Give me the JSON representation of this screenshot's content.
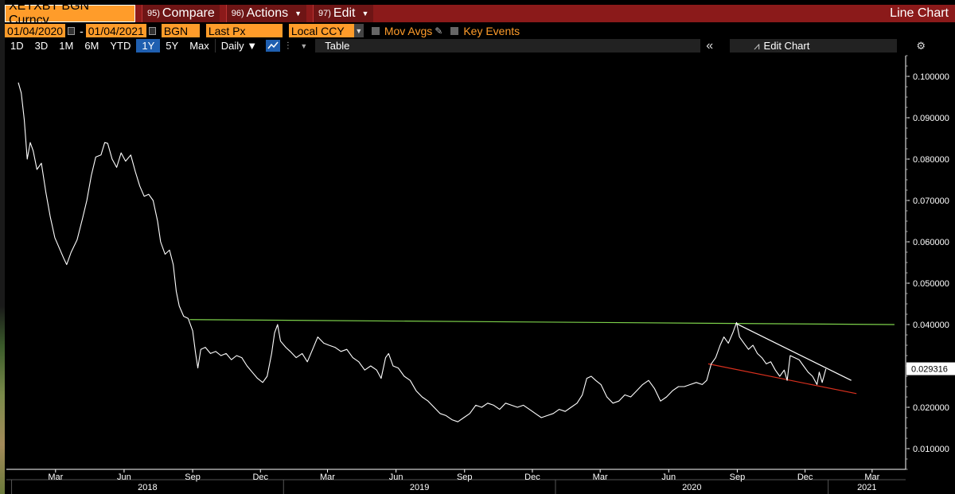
{
  "header": {
    "ticker": "XETXBT BGN Curncy",
    "compare_num": "95)",
    "compare_label": "Compare",
    "actions_num": "96)",
    "actions_label": "Actions",
    "edit_num": "97)",
    "edit_label": "Edit",
    "title": "Line Chart"
  },
  "controls": {
    "start_date": "01/04/2020",
    "end_date": "01/04/2021",
    "source": "BGN",
    "field": "Last Px",
    "currency": "Local CCY",
    "mov_avgs": "Mov Avgs",
    "key_events": "Key Events"
  },
  "toolbar": {
    "periods": [
      "1D",
      "3D",
      "1M",
      "6M",
      "YTD",
      "1Y",
      "5Y",
      "Max"
    ],
    "active_period": "1Y",
    "frequency": "Daily ▼",
    "table_label": "Table",
    "collapse_label": "«",
    "edit_chart_label": "Edit Chart",
    "settings_icon": "gear-icon"
  },
  "colors": {
    "header_red": "#8b1a1a",
    "orange": "#ff9c2a",
    "active_blue": "#1f5fb0",
    "resistance_green": "#7cd04a",
    "support_red": "#d9301e",
    "price_line": "#ffffff"
  },
  "chart_data": {
    "type": "line",
    "series": [
      {
        "values": [
          [
            "2018-01-10",
            0.0985
          ],
          [
            "2018-01-14",
            0.096
          ],
          [
            "2018-01-18",
            0.0895
          ],
          [
            "2018-01-22",
            0.08
          ],
          [
            "2018-01-26",
            0.084
          ],
          [
            "2018-01-30",
            0.082
          ],
          [
            "2018-02-04",
            0.0775
          ],
          [
            "2018-02-10",
            0.079
          ],
          [
            "2018-02-16",
            0.072
          ],
          [
            "2018-02-22",
            0.066
          ],
          [
            "2018-02-28",
            0.061
          ],
          [
            "2018-03-06",
            0.0585
          ],
          [
            "2018-03-12",
            0.056
          ],
          [
            "2018-03-16",
            0.0545
          ],
          [
            "2018-03-22",
            0.0575
          ],
          [
            "2018-03-30",
            0.0605
          ],
          [
            "2018-04-06",
            0.0655
          ],
          [
            "2018-04-12",
            0.07
          ],
          [
            "2018-04-18",
            0.076
          ],
          [
            "2018-04-24",
            0.0805
          ],
          [
            "2018-05-01",
            0.081
          ],
          [
            "2018-05-06",
            0.084
          ],
          [
            "2018-05-10",
            0.0838
          ],
          [
            "2018-05-16",
            0.08
          ],
          [
            "2018-05-22",
            0.078
          ],
          [
            "2018-05-28",
            0.0815
          ],
          [
            "2018-06-03",
            0.0795
          ],
          [
            "2018-06-10",
            0.081
          ],
          [
            "2018-06-16",
            0.077
          ],
          [
            "2018-06-22",
            0.0735
          ],
          [
            "2018-06-28",
            0.071
          ],
          [
            "2018-07-04",
            0.0715
          ],
          [
            "2018-07-10",
            0.07
          ],
          [
            "2018-07-16",
            0.065
          ],
          [
            "2018-07-20",
            0.06
          ],
          [
            "2018-07-26",
            0.057
          ],
          [
            "2018-08-01",
            0.058
          ],
          [
            "2018-08-06",
            0.0545
          ],
          [
            "2018-08-10",
            0.048
          ],
          [
            "2018-08-14",
            0.0445
          ],
          [
            "2018-08-20",
            0.042
          ],
          [
            "2018-08-26",
            0.0415
          ],
          [
            "2018-09-01",
            0.0385
          ],
          [
            "2018-09-05",
            0.033
          ],
          [
            "2018-09-08",
            0.0295
          ],
          [
            "2018-09-12",
            0.034
          ],
          [
            "2018-09-18",
            0.0345
          ],
          [
            "2018-09-25",
            0.033
          ],
          [
            "2018-10-02",
            0.0335
          ],
          [
            "2018-10-09",
            0.0325
          ],
          [
            "2018-10-16",
            0.033
          ],
          [
            "2018-10-23",
            0.0315
          ],
          [
            "2018-10-30",
            0.0325
          ],
          [
            "2018-11-06",
            0.032
          ],
          [
            "2018-11-13",
            0.03
          ],
          [
            "2018-11-20",
            0.0285
          ],
          [
            "2018-11-27",
            0.027
          ],
          [
            "2018-12-04",
            0.026
          ],
          [
            "2018-12-10",
            0.0275
          ],
          [
            "2018-12-16",
            0.033
          ],
          [
            "2018-12-20",
            0.038
          ],
          [
            "2018-12-24",
            0.04
          ],
          [
            "2018-12-28",
            0.036
          ],
          [
            "2019-01-04",
            0.0345
          ],
          [
            "2019-01-10",
            0.0335
          ],
          [
            "2019-01-18",
            0.032
          ],
          [
            "2019-01-26",
            0.033
          ],
          [
            "2019-02-02",
            0.031
          ],
          [
            "2019-02-09",
            0.034
          ],
          [
            "2019-02-16",
            0.037
          ],
          [
            "2019-02-24",
            0.0355
          ],
          [
            "2019-03-03",
            0.035
          ],
          [
            "2019-03-11",
            0.0345
          ],
          [
            "2019-03-19",
            0.0335
          ],
          [
            "2019-03-27",
            0.034
          ],
          [
            "2019-04-04",
            0.032
          ],
          [
            "2019-04-12",
            0.031
          ],
          [
            "2019-04-20",
            0.029
          ],
          [
            "2019-04-28",
            0.03
          ],
          [
            "2019-05-06",
            0.029
          ],
          [
            "2019-05-12",
            0.027
          ],
          [
            "2019-05-18",
            0.032
          ],
          [
            "2019-05-22",
            0.033
          ],
          [
            "2019-05-28",
            0.03
          ],
          [
            "2019-06-04",
            0.0295
          ],
          [
            "2019-06-12",
            0.0275
          ],
          [
            "2019-06-20",
            0.0265
          ],
          [
            "2019-06-28",
            0.024
          ],
          [
            "2019-07-06",
            0.0225
          ],
          [
            "2019-07-14",
            0.0215
          ],
          [
            "2019-07-22",
            0.02
          ],
          [
            "2019-07-30",
            0.0185
          ],
          [
            "2019-08-07",
            0.018
          ],
          [
            "2019-08-15",
            0.017
          ],
          [
            "2019-08-23",
            0.0165
          ],
          [
            "2019-08-31",
            0.0175
          ],
          [
            "2019-09-08",
            0.0185
          ],
          [
            "2019-09-16",
            0.0205
          ],
          [
            "2019-09-24",
            0.02
          ],
          [
            "2019-10-02",
            0.021
          ],
          [
            "2019-10-10",
            0.0205
          ],
          [
            "2019-10-18",
            0.0195
          ],
          [
            "2019-10-26",
            0.021
          ],
          [
            "2019-11-03",
            0.0205
          ],
          [
            "2019-11-11",
            0.02
          ],
          [
            "2019-11-19",
            0.0205
          ],
          [
            "2019-11-27",
            0.0195
          ],
          [
            "2019-12-05",
            0.0185
          ],
          [
            "2019-12-13",
            0.0175
          ],
          [
            "2019-12-21",
            0.018
          ],
          [
            "2019-12-29",
            0.0185
          ],
          [
            "2020-01-06",
            0.0195
          ],
          [
            "2020-01-14",
            0.019
          ],
          [
            "2020-01-22",
            0.02
          ],
          [
            "2020-01-30",
            0.021
          ],
          [
            "2020-02-06",
            0.023
          ],
          [
            "2020-02-12",
            0.027
          ],
          [
            "2020-02-18",
            0.0275
          ],
          [
            "2020-02-24",
            0.0265
          ],
          [
            "2020-03-02",
            0.0255
          ],
          [
            "2020-03-10",
            0.0225
          ],
          [
            "2020-03-18",
            0.021
          ],
          [
            "2020-03-26",
            0.0215
          ],
          [
            "2020-04-03",
            0.023
          ],
          [
            "2020-04-11",
            0.0225
          ],
          [
            "2020-04-19",
            0.024
          ],
          [
            "2020-04-27",
            0.0255
          ],
          [
            "2020-05-05",
            0.0265
          ],
          [
            "2020-05-13",
            0.0245
          ],
          [
            "2020-05-21",
            0.0215
          ],
          [
            "2020-05-29",
            0.0225
          ],
          [
            "2020-06-06",
            0.024
          ],
          [
            "2020-06-14",
            0.025
          ],
          [
            "2020-06-22",
            0.025
          ],
          [
            "2020-06-30",
            0.0255
          ],
          [
            "2020-07-08",
            0.026
          ],
          [
            "2020-07-16",
            0.0255
          ],
          [
            "2020-07-22",
            0.0265
          ],
          [
            "2020-07-28",
            0.0305
          ],
          [
            "2020-08-03",
            0.032
          ],
          [
            "2020-08-09",
            0.035
          ],
          [
            "2020-08-14",
            0.037
          ],
          [
            "2020-08-20",
            0.0355
          ],
          [
            "2020-08-26",
            0.038
          ],
          [
            "2020-08-31",
            0.0405
          ],
          [
            "2020-09-04",
            0.037
          ],
          [
            "2020-09-10",
            0.0355
          ],
          [
            "2020-09-16",
            0.034
          ],
          [
            "2020-09-22",
            0.035
          ],
          [
            "2020-09-28",
            0.033
          ],
          [
            "2020-10-04",
            0.032
          ],
          [
            "2020-10-10",
            0.0305
          ],
          [
            "2020-10-16",
            0.031
          ],
          [
            "2020-10-22",
            0.029
          ],
          [
            "2020-10-28",
            0.0275
          ],
          [
            "2020-11-03",
            0.029
          ],
          [
            "2020-11-07",
            0.0265
          ],
          [
            "2020-11-11",
            0.0325
          ],
          [
            "2020-11-17",
            0.032
          ],
          [
            "2020-11-23",
            0.0315
          ],
          [
            "2020-11-29",
            0.03
          ],
          [
            "2020-12-05",
            0.0285
          ],
          [
            "2020-12-11",
            0.0275
          ],
          [
            "2020-12-17",
            0.0255
          ],
          [
            "2020-12-20",
            0.0285
          ],
          [
            "2020-12-24",
            0.026
          ],
          [
            "2020-12-29",
            0.0293
          ]
        ]
      }
    ],
    "trendlines": [
      {
        "color": "#7cd04a",
        "from": [
          "2018-08-28",
          0.0412
        ],
        "to": [
          "2021-03-31",
          0.04
        ]
      },
      {
        "color": "#ffffff",
        "from": [
          "2020-08-31",
          0.0402
        ],
        "to": [
          "2021-02-01",
          0.0265
        ]
      },
      {
        "color": "#d9301e",
        "from": [
          "2020-07-24",
          0.0305
        ],
        "to": [
          "2021-02-08",
          0.0233
        ]
      }
    ],
    "last_value": 0.029316,
    "last_value_label": "0.029316",
    "ylim": [
      0.005,
      0.105
    ],
    "yticks": [
      [
        "0.100000",
        0.1
      ],
      [
        "0.090000",
        0.09
      ],
      [
        "0.080000",
        0.08
      ],
      [
        "0.070000",
        0.07
      ],
      [
        "0.060000",
        0.06
      ],
      [
        "0.050000",
        0.05
      ],
      [
        "0.040000",
        0.04
      ],
      [
        "0.030000",
        0.03
      ],
      [
        "0.020000",
        0.02
      ],
      [
        "0.010000",
        0.01
      ]
    ],
    "xlim": [
      "2017-12-25",
      "2021-04-15"
    ],
    "xticks": [
      [
        "Mar",
        "2018-03-01"
      ],
      [
        "Jun",
        "2018-06-01"
      ],
      [
        "Sep",
        "2018-09-01"
      ],
      [
        "Dec",
        "2018-12-01"
      ],
      [
        "Mar",
        "2019-03-01"
      ],
      [
        "Jun",
        "2019-06-01"
      ],
      [
        "Sep",
        "2019-09-01"
      ],
      [
        "Dec",
        "2019-12-01"
      ],
      [
        "Mar",
        "2020-03-01"
      ],
      [
        "Jun",
        "2020-06-01"
      ],
      [
        "Sep",
        "2020-09-01"
      ],
      [
        "Dec",
        "2020-12-01"
      ],
      [
        "Mar",
        "2021-03-01"
      ]
    ],
    "years": [
      [
        "2018",
        "2018-01-01",
        "2019-01-01"
      ],
      [
        "2019",
        "2019-01-01",
        "2020-01-01"
      ],
      [
        "2020",
        "2020-01-01",
        "2021-01-01"
      ],
      [
        "2021",
        "2021-01-01",
        "2021-04-15"
      ]
    ],
    "grid": false,
    "legend": "none"
  }
}
